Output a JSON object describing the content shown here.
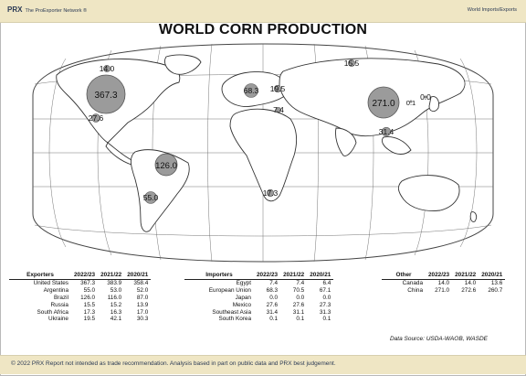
{
  "header": {
    "brand": "PRX",
    "brand_sub": "The ProExporter Network ®",
    "tagline": "World Imports/Exports"
  },
  "title": "WORLD CORN PRODUCTION",
  "map": {
    "bubbles": [
      {
        "region": "North America small",
        "label": "14.0",
        "value": 14.0
      },
      {
        "region": "United States",
        "label": "367.3",
        "value": 367.3
      },
      {
        "region": "Mexico",
        "label": "27.6",
        "value": 27.6
      },
      {
        "region": "Brazil",
        "label": "126.0",
        "value": 126.0
      },
      {
        "region": "Argentina",
        "label": "55.0",
        "value": 55.0
      },
      {
        "region": "European Union",
        "label": "68.3",
        "value": 68.3
      },
      {
        "region": "Ukraine",
        "label": "19.5",
        "value": 19.5
      },
      {
        "region": "Russia",
        "label": "15.5",
        "value": 15.5
      },
      {
        "region": "Egypt",
        "label": "7.4",
        "value": 7.4
      },
      {
        "region": "South Africa",
        "label": "17.3",
        "value": 17.3
      },
      {
        "region": "China",
        "label": "271.0",
        "value": 271.0
      },
      {
        "region": "South Korea",
        "label": "0.1",
        "value": 0.1
      },
      {
        "region": "Japan",
        "label": "0.0",
        "value": 0.0
      },
      {
        "region": "Southeast Asia",
        "label": "31.4",
        "value": 31.4
      }
    ],
    "colors": {
      "bubble_fill": "#9b9b9b",
      "bubble_stroke": "#555555",
      "land_fill": "#ffffff",
      "outline": "#444444"
    }
  },
  "tables": {
    "exporters": {
      "headers": [
        "Exporters",
        "2022/23",
        "2021/22",
        "2020/21"
      ],
      "rows": [
        [
          "United States",
          "367.3",
          "383.9",
          "358.4"
        ],
        [
          "Argentina",
          "55.0",
          "53.0",
          "52.0"
        ],
        [
          "Brazil",
          "126.0",
          "116.0",
          "87.0"
        ],
        [
          "Russia",
          "15.5",
          "15.2",
          "13.9"
        ],
        [
          "South Africa",
          "17.3",
          "16.3",
          "17.0"
        ],
        [
          "Ukraine",
          "19.5",
          "42.1",
          "30.3"
        ]
      ]
    },
    "importers": {
      "headers": [
        "Importers",
        "2022/23",
        "2021/22",
        "2020/21"
      ],
      "rows": [
        [
          "Egypt",
          "7.4",
          "7.4",
          "6.4"
        ],
        [
          "European Union",
          "68.3",
          "70.5",
          "67.1"
        ],
        [
          "Japan",
          "0.0",
          "0.0",
          "0.0"
        ],
        [
          "Mexico",
          "27.6",
          "27.6",
          "27.3"
        ],
        [
          "Southeast Asia",
          "31.4",
          "31.1",
          "31.3"
        ],
        [
          "South Korea",
          "0.1",
          "0.1",
          "0.1"
        ]
      ]
    },
    "other": {
      "headers": [
        "Other",
        "2022/23",
        "2021/22",
        "2020/21"
      ],
      "rows": [
        [
          "Canada",
          "14.0",
          "14.0",
          "13.6"
        ],
        [
          "China",
          "271.0",
          "272.6",
          "260.7"
        ]
      ]
    }
  },
  "source": "Data Source: USDA-WAOB, WASDE",
  "footer": "© 2022 PRX  Report not intended as trade recommendation. Analysis based in part on public data and PRX best judgement."
}
